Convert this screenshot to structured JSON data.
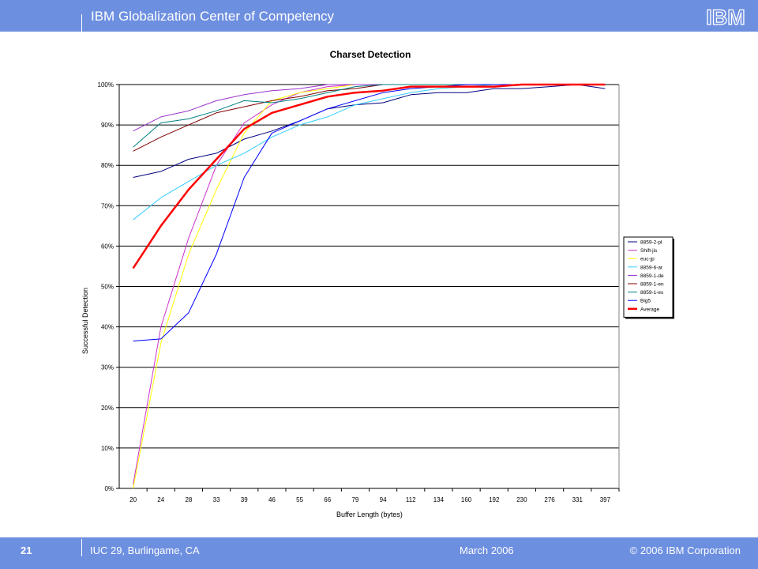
{
  "header": {
    "title": "IBM Globalization Center of Competency",
    "logo_text": "IBM"
  },
  "footer": {
    "page_number": "21",
    "conference": "IUC 29, Burlingame, CA",
    "date": "March 2006",
    "copyright": "© 2006 IBM Corporation"
  },
  "colors": {
    "bar": "#6d8fe0"
  },
  "chart_data": {
    "type": "line",
    "title": "Charset Detection",
    "xlabel": "Buffer Length (bytes)",
    "ylabel": "Successful Detection",
    "ylim": [
      0,
      100
    ],
    "y_ticks": [
      "0%",
      "10%",
      "20%",
      "30%",
      "40%",
      "50%",
      "60%",
      "70%",
      "80%",
      "90%",
      "100%"
    ],
    "grid": true,
    "legend_position": "right",
    "categories": [
      "20",
      "24",
      "28",
      "33",
      "39",
      "46",
      "55",
      "66",
      "79",
      "94",
      "112",
      "134",
      "160",
      "192",
      "230",
      "276",
      "331",
      "397"
    ],
    "series": [
      {
        "name": "8859-2-pl",
        "color": "#000080",
        "width": 1,
        "values": [
          77,
          78.5,
          81.5,
          83,
          86.5,
          88.5,
          91,
          94,
          95,
          95.5,
          97.5,
          98,
          98,
          99,
          99,
          99.5,
          100,
          99
        ]
      },
      {
        "name": "Shift-jis",
        "color": "#cc33cc",
        "width": 1,
        "values": [
          1,
          40,
          62,
          80,
          90.5,
          95,
          98,
          99.5,
          100,
          100,
          100,
          100,
          100,
          100,
          100,
          100,
          100,
          100
        ]
      },
      {
        "name": "euc-jp",
        "color": "#ffff00",
        "width": 1,
        "values": [
          0,
          36,
          58,
          74,
          88,
          96,
          98,
          99,
          100,
          100,
          100,
          100,
          100,
          100,
          100,
          100,
          100,
          100
        ]
      },
      {
        "name": "8859-6-ar",
        "color": "#33ccff",
        "width": 1,
        "values": [
          66.5,
          72,
          76,
          80,
          83,
          87,
          90,
          92,
          95,
          96.5,
          98,
          99,
          99.5,
          100,
          100,
          100,
          100,
          100
        ]
      },
      {
        "name": "8859-1-de",
        "color": "#9933cc",
        "width": 1,
        "values": [
          88.5,
          92,
          93.5,
          96,
          97.5,
          98.5,
          99,
          100,
          100,
          100,
          100,
          100,
          100,
          100,
          100,
          100,
          100,
          100
        ]
      },
      {
        "name": "8859-1-en",
        "color": "#800000",
        "width": 1,
        "values": [
          83.5,
          87,
          90,
          93,
          94.5,
          96,
          97,
          98.5,
          99,
          100,
          100,
          100,
          100,
          100,
          100,
          100,
          100,
          100
        ]
      },
      {
        "name": "8859-1-es",
        "color": "#008080",
        "width": 1,
        "values": [
          84.5,
          90.5,
          91.5,
          93.5,
          96,
          95.5,
          96.5,
          98,
          99.5,
          100,
          100,
          100,
          100,
          100,
          100,
          100,
          100,
          100
        ]
      },
      {
        "name": "Big5",
        "color": "#0000ff",
        "width": 1,
        "values": [
          36.5,
          37,
          43.5,
          58,
          77,
          88,
          91,
          94,
          96,
          98,
          99,
          99.5,
          100,
          100,
          100,
          100,
          100,
          100
        ]
      },
      {
        "name": "Average",
        "color": "#ff0000",
        "width": 2.5,
        "values": [
          54.5,
          65,
          74,
          81.5,
          89,
          93,
          95,
          97,
          98,
          98.5,
          99.5,
          99.5,
          99.5,
          99.5,
          100,
          100,
          100,
          100
        ]
      }
    ]
  }
}
